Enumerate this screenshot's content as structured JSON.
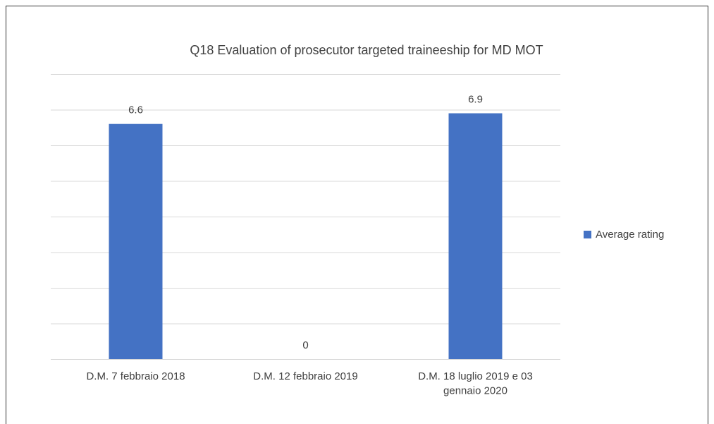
{
  "chart_data": {
    "type": "bar",
    "title": "Q18 Evaluation of prosecutor targeted traineeship for MD MOT",
    "categories": [
      "D.M. 7 febbraio 2018",
      "D.M. 12 febbraio 2019",
      "D.M. 18 luglio 2019 e 03 gennaio 2020"
    ],
    "series": [
      {
        "name": "Average rating",
        "color": "#4472c4",
        "values": [
          6.6,
          0,
          6.9
        ]
      }
    ],
    "ylim": [
      0,
      8
    ],
    "yticks": [
      0,
      1,
      2,
      3,
      4,
      5,
      6,
      7,
      8
    ],
    "grid": true,
    "legend": "right"
  }
}
